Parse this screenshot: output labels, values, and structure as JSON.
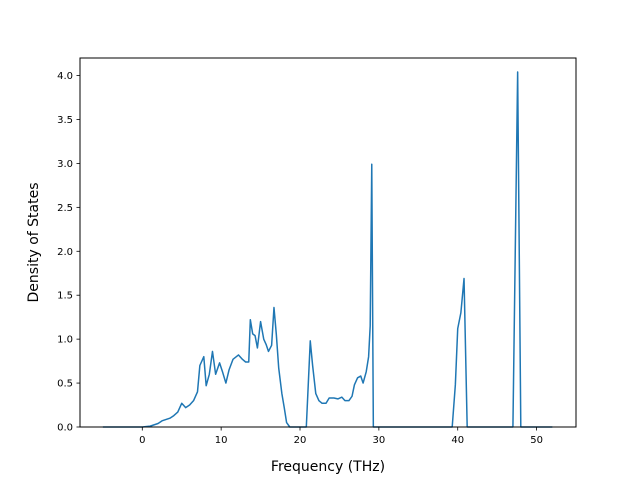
{
  "chart_data": {
    "type": "line",
    "title": "",
    "xlabel": "Frequency (THz)",
    "ylabel": "Density of States",
    "xlim": [
      -7.9,
      55.0
    ],
    "ylim": [
      0.0,
      4.2
    ],
    "xticks": [
      0,
      10,
      20,
      30,
      40,
      50
    ],
    "yticks": [
      0.0,
      0.5,
      1.0,
      1.5,
      2.0,
      2.5,
      3.0,
      3.5,
      4.0
    ],
    "xtick_labels": [
      "0",
      "10",
      "20",
      "30",
      "40",
      "50"
    ],
    "ytick_labels": [
      "0.0",
      "0.5",
      "1.0",
      "1.5",
      "2.0",
      "2.5",
      "3.0",
      "3.5",
      "4.0"
    ],
    "grid": false,
    "legend": "none",
    "series": [
      {
        "color": "#1f77b4",
        "points": [
          [
            -5.0,
            0.0
          ],
          [
            0.0,
            0.0
          ],
          [
            1.0,
            0.01
          ],
          [
            2.0,
            0.04
          ],
          [
            2.5,
            0.07
          ],
          [
            3.5,
            0.1
          ],
          [
            4.0,
            0.13
          ],
          [
            4.5,
            0.17
          ],
          [
            5.0,
            0.27
          ],
          [
            5.5,
            0.22
          ],
          [
            6.0,
            0.25
          ],
          [
            6.5,
            0.3
          ],
          [
            7.0,
            0.4
          ],
          [
            7.3,
            0.7
          ],
          [
            7.8,
            0.8
          ],
          [
            8.1,
            0.47
          ],
          [
            8.5,
            0.6
          ],
          [
            8.9,
            0.86
          ],
          [
            9.3,
            0.6
          ],
          [
            9.8,
            0.73
          ],
          [
            10.2,
            0.62
          ],
          [
            10.6,
            0.5
          ],
          [
            11.0,
            0.65
          ],
          [
            11.5,
            0.77
          ],
          [
            12.2,
            0.82
          ],
          [
            12.7,
            0.77
          ],
          [
            13.1,
            0.74
          ],
          [
            13.5,
            0.74
          ],
          [
            13.7,
            1.22
          ],
          [
            14.0,
            1.06
          ],
          [
            14.3,
            1.04
          ],
          [
            14.6,
            0.9
          ],
          [
            15.0,
            1.2
          ],
          [
            15.4,
            1.0
          ],
          [
            15.7,
            0.94
          ],
          [
            16.0,
            0.86
          ],
          [
            16.4,
            0.93
          ],
          [
            16.7,
            1.36
          ],
          [
            17.0,
            1.05
          ],
          [
            17.3,
            0.67
          ],
          [
            17.7,
            0.38
          ],
          [
            18.0,
            0.22
          ],
          [
            18.3,
            0.05
          ],
          [
            18.7,
            0.0
          ],
          [
            20.8,
            0.0
          ],
          [
            21.3,
            0.98
          ],
          [
            21.6,
            0.7
          ],
          [
            22.0,
            0.38
          ],
          [
            22.4,
            0.3
          ],
          [
            22.8,
            0.27
          ],
          [
            23.3,
            0.27
          ],
          [
            23.7,
            0.33
          ],
          [
            24.3,
            0.33
          ],
          [
            24.8,
            0.32
          ],
          [
            25.3,
            0.34
          ],
          [
            25.7,
            0.3
          ],
          [
            26.2,
            0.3
          ],
          [
            26.6,
            0.35
          ],
          [
            26.9,
            0.48
          ],
          [
            27.3,
            0.56
          ],
          [
            27.7,
            0.58
          ],
          [
            28.0,
            0.5
          ],
          [
            28.4,
            0.63
          ],
          [
            28.7,
            0.8
          ],
          [
            28.9,
            1.15
          ],
          [
            29.1,
            2.99
          ],
          [
            29.3,
            0.0
          ],
          [
            39.3,
            0.0
          ],
          [
            39.7,
            0.48
          ],
          [
            40.0,
            1.12
          ],
          [
            40.4,
            1.3
          ],
          [
            40.8,
            1.69
          ],
          [
            41.2,
            0.0
          ],
          [
            47.0,
            0.0
          ],
          [
            47.6,
            4.04
          ],
          [
            48.0,
            0.0
          ],
          [
            52.0,
            0.0
          ]
        ]
      }
    ]
  }
}
